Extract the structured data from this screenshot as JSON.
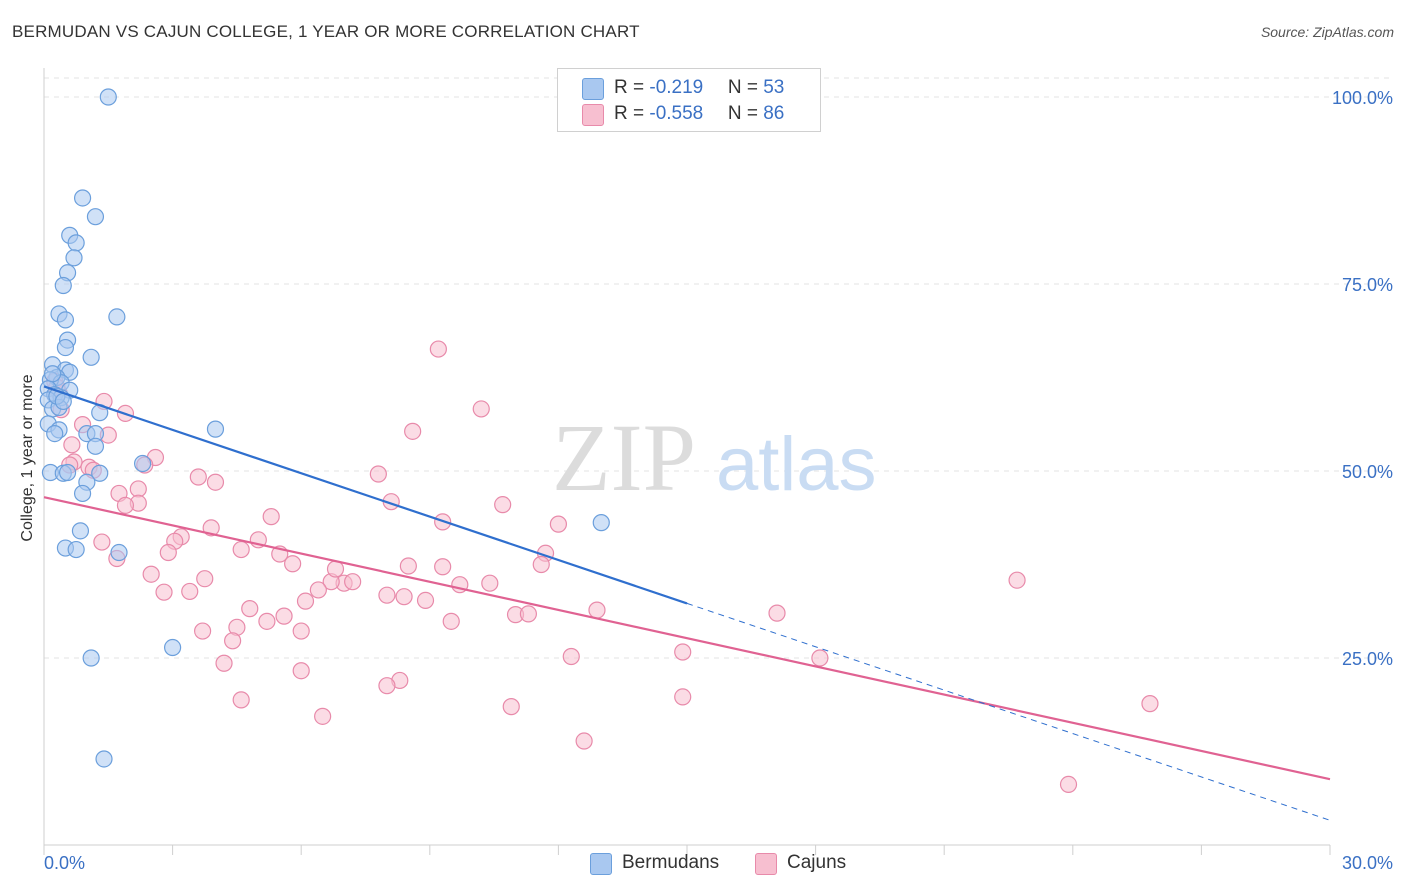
{
  "title": "BERMUDAN VS CAJUN COLLEGE, 1 YEAR OR MORE CORRELATION CHART",
  "source": "Source: ZipAtlas.com",
  "watermark": {
    "zip": "ZIP",
    "atlas": "atlas"
  },
  "legend": {
    "rows": [
      {
        "r_label": "R = ",
        "r_value": "-0.219",
        "n_label": "N = ",
        "n_value": "53"
      },
      {
        "r_label": "R = ",
        "r_value": "-0.558",
        "n_label": "N = ",
        "n_value": "86"
      }
    ]
  },
  "bottom_legend": [
    "Bermudans",
    "Cajuns"
  ],
  "colors": {
    "bermudans_fill": "#a9c8f0",
    "bermudans_stroke": "#6b9fdc",
    "bermudans_line": "#2f6fce",
    "cajuns_fill": "#f7bfd0",
    "cajuns_stroke": "#e88aaa",
    "cajuns_line": "#e06292",
    "axis_text": "#3a70c4",
    "grid": "#e3e3e3"
  },
  "chart_data": {
    "type": "scatter",
    "title": "BERMUDAN VS CAJUN COLLEGE, 1 YEAR OR MORE CORRELATION CHART",
    "xlabel": "",
    "ylabel": "College, 1 year or more",
    "xlim": [
      0,
      30
    ],
    "ylim": [
      0,
      100
    ],
    "x_tick_labels": [
      "0.0%",
      "30.0%"
    ],
    "y_ticks": [
      25,
      50,
      75,
      100
    ],
    "y_tick_labels": [
      "25.0%",
      "50.0%",
      "75.0%",
      "100.0%"
    ],
    "grid": true,
    "legend_placement": "bottom-center",
    "series": [
      {
        "name": "Bermudans",
        "R": -0.219,
        "N": 53,
        "trend": {
          "x": [
            0,
            15
          ],
          "y": [
            61.3,
            32.3
          ]
        },
        "trend_dashed": {
          "x": [
            15,
            30
          ],
          "y": [
            32.3,
            3.3
          ]
        },
        "points": [
          [
            1.5,
            100.0
          ],
          [
            0.9,
            86.5
          ],
          [
            1.2,
            84.0
          ],
          [
            0.6,
            81.5
          ],
          [
            0.75,
            80.5
          ],
          [
            0.7,
            78.5
          ],
          [
            0.55,
            76.5
          ],
          [
            0.45,
            74.8
          ],
          [
            0.35,
            71.0
          ],
          [
            0.5,
            70.2
          ],
          [
            1.7,
            70.6
          ],
          [
            0.55,
            67.5
          ],
          [
            0.5,
            66.5
          ],
          [
            1.1,
            65.2
          ],
          [
            0.2,
            64.2
          ],
          [
            0.5,
            63.5
          ],
          [
            0.6,
            63.2
          ],
          [
            0.3,
            62.5
          ],
          [
            0.15,
            62.2
          ],
          [
            0.4,
            61.8
          ],
          [
            0.1,
            61.0
          ],
          [
            0.6,
            60.8
          ],
          [
            0.25,
            60.2
          ],
          [
            0.4,
            59.8
          ],
          [
            0.1,
            59.5
          ],
          [
            0.2,
            58.3
          ],
          [
            0.35,
            58.5
          ],
          [
            1.3,
            57.8
          ],
          [
            0.1,
            56.3
          ],
          [
            0.35,
            55.5
          ],
          [
            0.25,
            55.0
          ],
          [
            1.0,
            55.0
          ],
          [
            1.2,
            55.0
          ],
          [
            4.0,
            55.6
          ],
          [
            1.2,
            53.3
          ],
          [
            2.3,
            51.0
          ],
          [
            0.15,
            49.8
          ],
          [
            0.45,
            49.7
          ],
          [
            0.55,
            49.8
          ],
          [
            1.3,
            49.7
          ],
          [
            1.0,
            48.5
          ],
          [
            0.9,
            47.0
          ],
          [
            0.85,
            42.0
          ],
          [
            13.0,
            43.1
          ],
          [
            0.5,
            39.7
          ],
          [
            0.75,
            39.5
          ],
          [
            1.75,
            39.1
          ],
          [
            3.0,
            26.4
          ],
          [
            1.1,
            25.0
          ],
          [
            1.4,
            11.5
          ],
          [
            0.3,
            60.0
          ],
          [
            0.45,
            59.3
          ],
          [
            0.2,
            63.0
          ]
        ]
      },
      {
        "name": "Cajuns",
        "R": -0.558,
        "N": 86,
        "trend": {
          "x": [
            0,
            30
          ],
          "y": [
            46.5,
            8.8
          ]
        },
        "points": [
          [
            9.2,
            66.3
          ],
          [
            0.25,
            62.0
          ],
          [
            1.4,
            59.3
          ],
          [
            10.2,
            58.3
          ],
          [
            0.4,
            58.2
          ],
          [
            1.9,
            57.7
          ],
          [
            0.9,
            56.2
          ],
          [
            8.6,
            55.3
          ],
          [
            1.5,
            54.8
          ],
          [
            0.65,
            53.5
          ],
          [
            2.6,
            51.8
          ],
          [
            0.7,
            51.2
          ],
          [
            2.35,
            50.8
          ],
          [
            1.05,
            50.5
          ],
          [
            1.15,
            50.1
          ],
          [
            7.8,
            49.6
          ],
          [
            3.6,
            49.2
          ],
          [
            4.0,
            48.5
          ],
          [
            2.2,
            47.6
          ],
          [
            1.75,
            47.0
          ],
          [
            8.1,
            45.9
          ],
          [
            2.2,
            45.7
          ],
          [
            1.9,
            45.4
          ],
          [
            10.7,
            45.5
          ],
          [
            5.3,
            43.9
          ],
          [
            9.3,
            43.2
          ],
          [
            12.0,
            42.9
          ],
          [
            3.9,
            42.4
          ],
          [
            3.2,
            41.2
          ],
          [
            3.05,
            40.6
          ],
          [
            1.35,
            40.5
          ],
          [
            5.0,
            40.8
          ],
          [
            4.6,
            39.5
          ],
          [
            11.7,
            39.0
          ],
          [
            2.9,
            39.1
          ],
          [
            5.5,
            38.9
          ],
          [
            1.7,
            38.3
          ],
          [
            5.8,
            37.6
          ],
          [
            8.5,
            37.3
          ],
          [
            9.3,
            37.2
          ],
          [
            11.6,
            37.5
          ],
          [
            2.5,
            36.2
          ],
          [
            3.75,
            35.6
          ],
          [
            7.0,
            35.0
          ],
          [
            7.2,
            35.2
          ],
          [
            6.7,
            35.2
          ],
          [
            9.7,
            34.8
          ],
          [
            10.4,
            35.0
          ],
          [
            3.4,
            33.9
          ],
          [
            2.8,
            33.8
          ],
          [
            6.8,
            36.9
          ],
          [
            6.4,
            34.1
          ],
          [
            8.0,
            33.4
          ],
          [
            8.4,
            33.2
          ],
          [
            8.9,
            32.7
          ],
          [
            6.1,
            32.6
          ],
          [
            4.8,
            31.6
          ],
          [
            12.9,
            31.4
          ],
          [
            17.1,
            31.0
          ],
          [
            11.0,
            30.8
          ],
          [
            11.3,
            30.9
          ],
          [
            5.6,
            30.6
          ],
          [
            5.2,
            29.9
          ],
          [
            9.5,
            29.9
          ],
          [
            4.5,
            29.1
          ],
          [
            3.7,
            28.6
          ],
          [
            6.0,
            28.6
          ],
          [
            4.4,
            27.3
          ],
          [
            14.9,
            25.8
          ],
          [
            12.3,
            25.2
          ],
          [
            18.1,
            25.0
          ],
          [
            4.2,
            24.3
          ],
          [
            22.7,
            35.4
          ],
          [
            6.0,
            23.3
          ],
          [
            8.3,
            22.0
          ],
          [
            8.0,
            21.3
          ],
          [
            14.9,
            19.8
          ],
          [
            4.6,
            19.4
          ],
          [
            25.8,
            18.9
          ],
          [
            10.9,
            18.5
          ],
          [
            6.5,
            17.2
          ],
          [
            12.6,
            13.9
          ],
          [
            23.9,
            8.1
          ],
          [
            0.35,
            60.5
          ],
          [
            0.6,
            50.8
          ],
          [
            0.3,
            61.2
          ]
        ]
      }
    ]
  }
}
